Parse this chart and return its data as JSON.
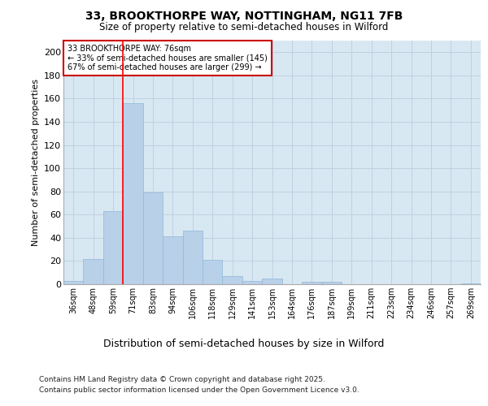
{
  "title_line1": "33, BROOKTHORPE WAY, NOTTINGHAM, NG11 7FB",
  "title_line2": "Size of property relative to semi-detached houses in Wilford",
  "xlabel": "Distribution of semi-detached houses by size in Wilford",
  "ylabel": "Number of semi-detached properties",
  "categories": [
    "36sqm",
    "48sqm",
    "59sqm",
    "71sqm",
    "83sqm",
    "94sqm",
    "106sqm",
    "118sqm",
    "129sqm",
    "141sqm",
    "153sqm",
    "164sqm",
    "176sqm",
    "187sqm",
    "199sqm",
    "211sqm",
    "223sqm",
    "234sqm",
    "246sqm",
    "257sqm",
    "269sqm"
  ],
  "values": [
    3,
    22,
    63,
    156,
    79,
    41,
    46,
    21,
    7,
    3,
    5,
    0,
    2,
    2,
    0,
    0,
    0,
    0,
    0,
    0,
    1
  ],
  "bar_color": "#b8d0e8",
  "bar_edge_color": "#90b8d8",
  "grid_color": "#c0d0e0",
  "background_color": "#d8e8f2",
  "prop_line_index": 3,
  "property_label": "33 BROOKTHORPE WAY: 76sqm",
  "smaller_pct": 33,
  "smaller_count": 145,
  "larger_pct": 67,
  "larger_count": 299,
  "annotation_box_color": "#ffffff",
  "annotation_box_edge": "#cc0000",
  "ylim": [
    0,
    210
  ],
  "yticks": [
    0,
    20,
    40,
    60,
    80,
    100,
    120,
    140,
    160,
    180,
    200
  ],
  "footer_line1": "Contains HM Land Registry data © Crown copyright and database right 2025.",
  "footer_line2": "Contains public sector information licensed under the Open Government Licence v3.0."
}
